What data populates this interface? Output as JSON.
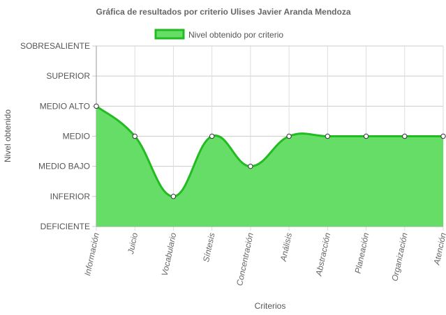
{
  "chart_data": {
    "type": "area",
    "title": "Gráfica de resultados por criterio Ulises Javier Aranda Mendoza",
    "xlabel": "Criterios",
    "ylabel": "Nivel obtenido",
    "levels": [
      "DEFICIENTE",
      "INFERIOR",
      "MEDIO BAJO",
      "MEDIO",
      "MEDIO ALTO",
      "SUPERIOR",
      "SOBRESALIENTE"
    ],
    "categories": [
      "Información",
      "Juicio",
      "Vocabulario",
      "Síntesis",
      "Concentración",
      "Análisis",
      "Abstracción",
      "Planeación",
      "Organización",
      "Atención"
    ],
    "series": [
      {
        "name": "Nivel obtenido por criterio",
        "values": [
          "MEDIO ALTO",
          "MEDIO",
          "INFERIOR",
          "MEDIO",
          "MEDIO BAJO",
          "MEDIO",
          "MEDIO",
          "MEDIO",
          "MEDIO",
          "MEDIO"
        ],
        "fill_color": "#66dd66",
        "line_color": "#22bb22"
      }
    ],
    "grid": true,
    "legend_position": "top"
  }
}
